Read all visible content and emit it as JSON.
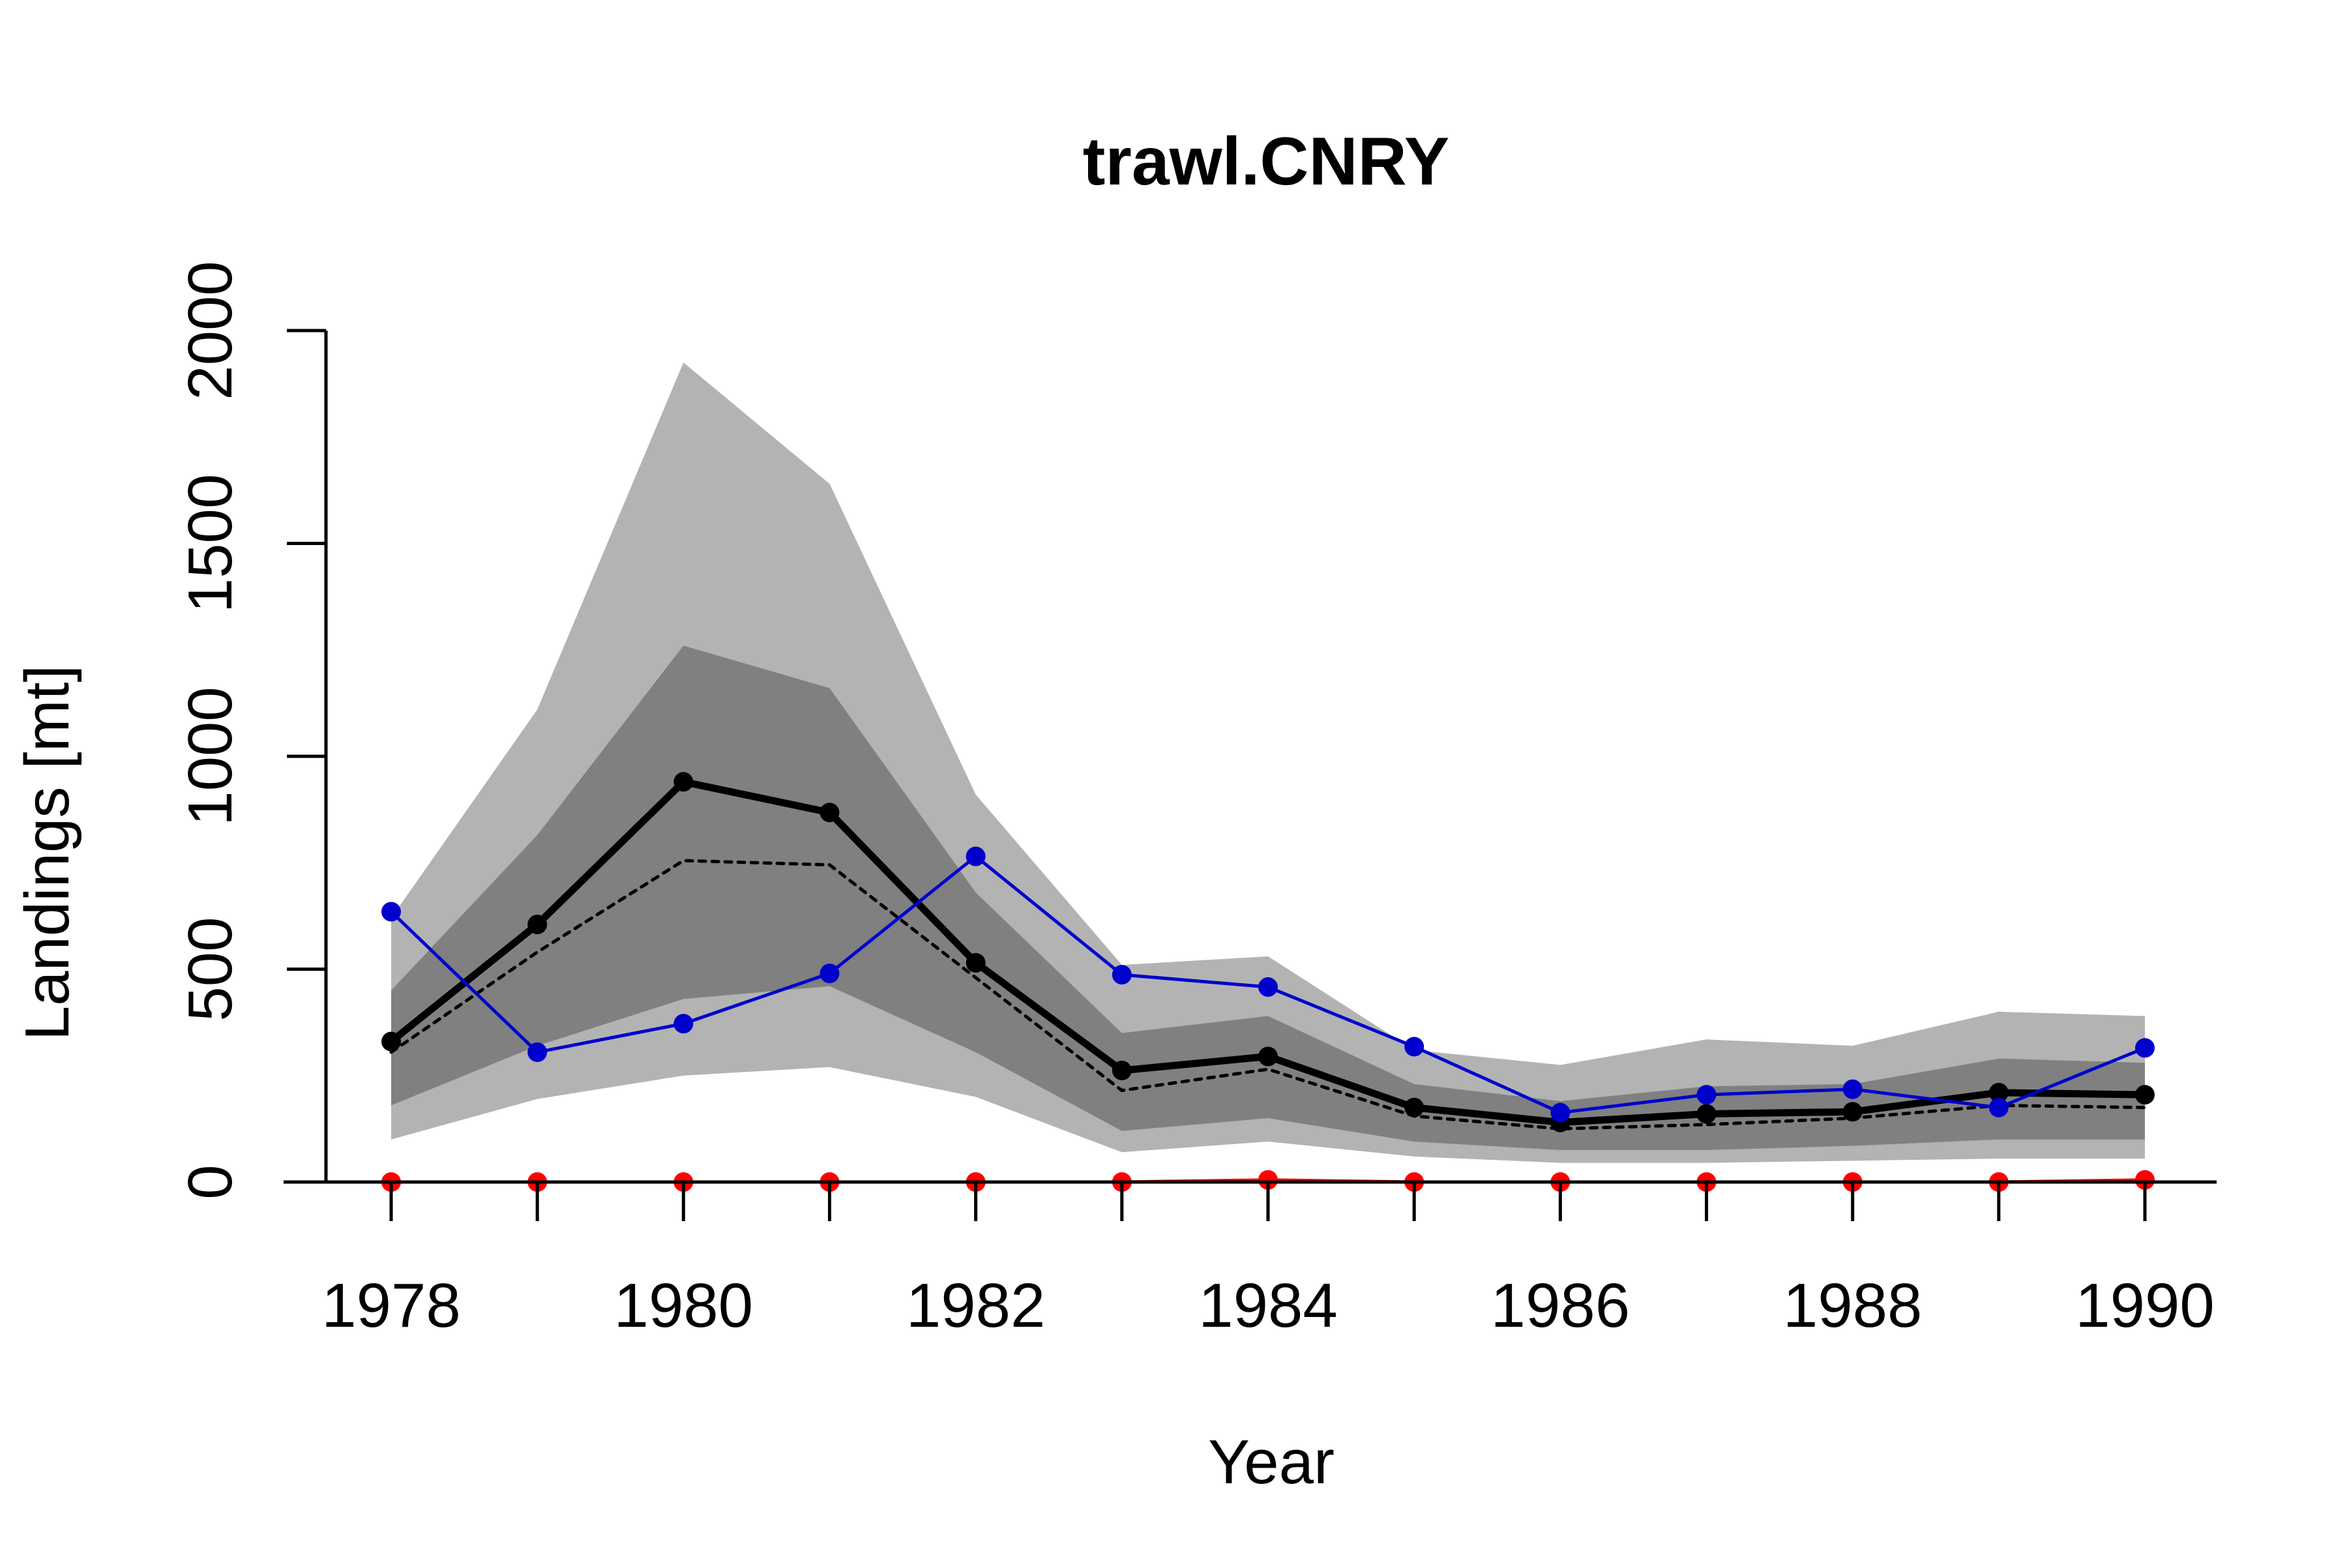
{
  "chart_data": {
    "type": "line",
    "title": "trawl.CNRY",
    "xlabel": "Year",
    "ylabel": "Landings [mt]",
    "xlim": [
      1977.25,
      1990.5
    ],
    "ylim": [
      0,
      2000
    ],
    "x": [
      1978,
      1979,
      1980,
      1981,
      1982,
      1983,
      1984,
      1985,
      1986,
      1987,
      1988,
      1989,
      1990
    ],
    "x_ticks": [
      "1978",
      "1980",
      "1982",
      "1984",
      "1986",
      "1988",
      "1990"
    ],
    "x_tick_values": [
      1978,
      1980,
      1982,
      1984,
      1986,
      1988,
      1990
    ],
    "y_ticks": [
      "0",
      "500",
      "1000",
      "1500",
      "2000"
    ],
    "y_tick_values": [
      0,
      500,
      1000,
      1500,
      2000
    ],
    "grid": false,
    "bands": [
      {
        "color": "#b3b3b3",
        "lower": [
          100,
          195,
          250,
          270,
          200,
          70,
          95,
          60,
          45,
          45,
          50,
          55,
          55
        ],
        "upper": [
          620,
          1110,
          1925,
          1640,
          910,
          510,
          530,
          310,
          275,
          335,
          320,
          400,
          390
        ]
      },
      {
        "color": "#808080",
        "lower": [
          180,
          320,
          430,
          460,
          305,
          120,
          150,
          95,
          75,
          75,
          85,
          100,
          100
        ],
        "upper": [
          450,
          815,
          1260,
          1160,
          680,
          350,
          390,
          230,
          190,
          225,
          230,
          290,
          280
        ]
      }
    ],
    "series": [
      {
        "role": "median",
        "color": "#000000",
        "style": "solid",
        "values": [
          330,
          605,
          940,
          868,
          515,
          262,
          295,
          175,
          140,
          160,
          165,
          210,
          205
        ]
      },
      {
        "role": "dotted",
        "color": "#000000",
        "style": "dotted",
        "values": [
          305,
          540,
          755,
          745,
          480,
          215,
          265,
          155,
          125,
          135,
          150,
          180,
          175
        ]
      },
      {
        "role": "blue",
        "color": "#0000cc",
        "style": "solid",
        "values": [
          635,
          305,
          372,
          490,
          765,
          487,
          458,
          318,
          163,
          205,
          218,
          175,
          315
        ]
      },
      {
        "role": "red",
        "color": "#ff0000",
        "style": "solid",
        "values": [
          0,
          0,
          0,
          0,
          0,
          0,
          5,
          0,
          0,
          0,
          0,
          0,
          5
        ]
      }
    ]
  }
}
